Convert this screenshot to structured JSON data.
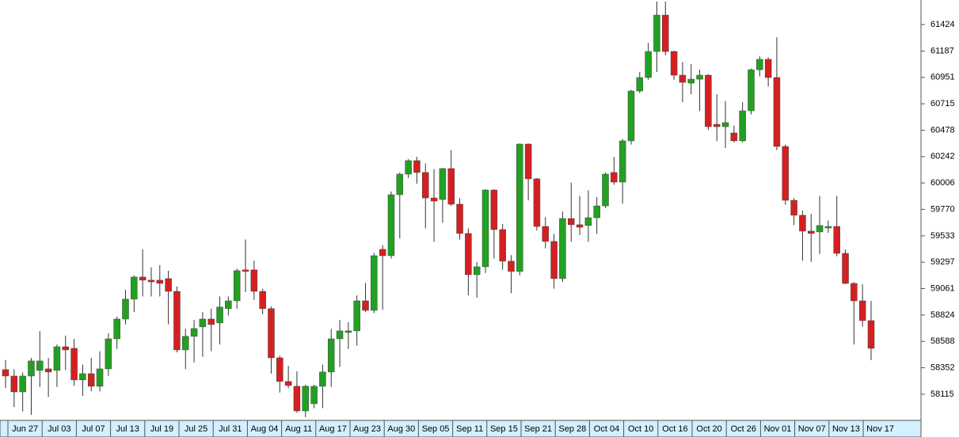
{
  "chart_data": {
    "type": "candlestick",
    "up_color": "#22a022",
    "down_color": "#d42020",
    "wick_color": "#333333",
    "ylim": [
      57888,
      61644
    ],
    "yticks": [
      58115,
      58352,
      58588,
      58824,
      59061,
      59297,
      59533,
      59770,
      60006,
      60242,
      60478,
      60715,
      60951,
      61187,
      61424
    ],
    "xticks": [
      "Jun 27",
      "Jul 03",
      "Jul 07",
      "Jul 13",
      "Jul 19",
      "Jul 25",
      "Jul 31",
      "Aug 04",
      "Aug 11",
      "Aug 17",
      "Aug 23",
      "Aug 30",
      "Sep 05",
      "Sep 11",
      "Sep 15",
      "Sep 21",
      "Sep 28",
      "Oct 04",
      "Oct 10",
      "Oct 16",
      "Oct 20",
      "Oct 26",
      "Nov 01",
      "Nov 07",
      "Nov 13",
      "Nov 17"
    ],
    "open": [
      58335,
      58278,
      58136,
      58278,
      58328,
      58342,
      58328,
      58540,
      58526,
      58243,
      58299,
      58186,
      58342,
      58611,
      58788,
      58966,
      59164,
      59136,
      59136,
      59150,
      59036,
      58512,
      58633,
      58718,
      58788,
      58753,
      58881,
      58951,
      59228,
      59228,
      59036,
      58881,
      58441,
      58229,
      58186,
      57966,
      58030,
      58186,
      58314,
      58611,
      58668,
      58682,
      58951,
      58866,
      59412,
      59355,
      59901,
      60085,
      60206,
      60100,
      59872,
      59858,
      60135,
      59816,
      59554,
      59185,
      59256,
      59943,
      59589,
      59306,
      59214,
      60354,
      60043,
      59617,
      59483,
      59150,
      59688,
      59632,
      59625,
      59695,
      59801,
      60100,
      60014,
      60383,
      60829,
      60950,
      61183,
      61509,
      61183,
      60971,
      60900,
      60935,
      60971,
      60531,
      60510,
      60454,
      60383,
      60652,
      61020,
      61113,
      60950,
      60333,
      59851,
      59717,
      59575,
      59568,
      59603,
      59617,
      59376,
      59107,
      58951,
      58774
    ],
    "high": [
      58420,
      58340,
      58310,
      58440,
      58680,
      58440,
      58560,
      58640,
      58610,
      58380,
      58440,
      58500,
      58660,
      58810,
      59050,
      59180,
      59410,
      59250,
      59270,
      59220,
      59080,
      58700,
      58780,
      58850,
      58880,
      58990,
      58990,
      59240,
      59500,
      59310,
      59060,
      58900,
      58460,
      58370,
      58320,
      58200,
      58200,
      58380,
      58700,
      58780,
      58760,
      59000,
      59110,
      59380,
      59450,
      59930,
      60100,
      60220,
      60240,
      60180,
      60130,
      60140,
      60300,
      59870,
      59600,
      59300,
      59950,
      59950,
      59640,
      59360,
      60360,
      60360,
      60050,
      59700,
      59550,
      59750,
      60010,
      59890,
      59940,
      59880,
      60100,
      60240,
      60400,
      60840,
      61000,
      61260,
      61630,
      61630,
      61190,
      61090,
      61070,
      61020,
      60980,
      60800,
      60740,
      60520,
      60730,
      61030,
      61140,
      61130,
      61310,
      60350,
      59870,
      59760,
      59730,
      59890,
      59670,
      59890,
      59410,
      59120,
      59100,
      58950
    ],
    "low": [
      58170,
      58000,
      57960,
      57930,
      58180,
      58090,
      58180,
      58330,
      58190,
      58100,
      58140,
      58140,
      58280,
      58520,
      58740,
      58850,
      58990,
      58990,
      58990,
      58740,
      58490,
      58340,
      58400,
      58450,
      58500,
      58560,
      58820,
      58880,
      59030,
      58960,
      58830,
      58300,
      58130,
      58170,
      57950,
      57910,
      57990,
      57990,
      58180,
      58360,
      58520,
      58550,
      58850,
      58840,
      58870,
      59330,
      59510,
      60050,
      60000,
      59600,
      59480,
      59650,
      59800,
      59500,
      59000,
      58980,
      59200,
      59330,
      59230,
      59020,
      59180,
      59850,
      59580,
      59420,
      59060,
      59120,
      59480,
      59540,
      59480,
      59550,
      59780,
      59990,
      59820,
      60350,
      60810,
      60930,
      61000,
      61150,
      60930,
      60730,
      60800,
      60650,
      60480,
      60380,
      60320,
      60370,
      60370,
      60620,
      60960,
      60870,
      60300,
      59810,
      59630,
      59310,
      59300,
      59370,
      59560,
      59350,
      59100,
      58560,
      58720,
      58420
    ],
    "close": [
      58278,
      58136,
      58278,
      58413,
      58413,
      58314,
      58540,
      58512,
      58243,
      58299,
      58186,
      58342,
      58611,
      58788,
      58966,
      59164,
      59136,
      59121,
      59107,
      59036,
      58512,
      58633,
      58703,
      58788,
      58739,
      58895,
      58951,
      59221,
      59214,
      59036,
      58881,
      58441,
      58229,
      58193,
      57966,
      58186,
      58186,
      58314,
      58611,
      58682,
      58682,
      58951,
      58866,
      59355,
      59355,
      59901,
      60085,
      60206,
      60100,
      59872,
      59844,
      60135,
      59816,
      59554,
      59185,
      59256,
      59943,
      59589,
      59306,
      59214,
      60354,
      60043,
      59617,
      59483,
      59150,
      59688,
      59632,
      59610,
      59695,
      59801,
      60085,
      60014,
      60383,
      60829,
      60950,
      61183,
      61509,
      61183,
      60971,
      60907,
      60935,
      60971,
      60510,
      60510,
      60546,
      60383,
      60652,
      61020,
      61113,
      60950,
      60333,
      59851,
      59717,
      59575,
      59554,
      59625,
      59617,
      59376,
      59107,
      58951,
      58774,
      58526
    ]
  }
}
